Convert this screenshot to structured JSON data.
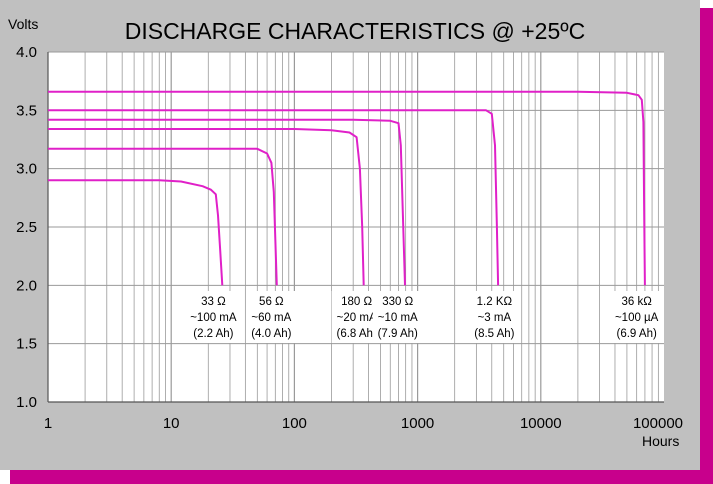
{
  "chart_data": {
    "type": "line",
    "title": "DISCHARGE CHARACTERISTICS @ +25ºC",
    "ylabel": "Volts",
    "xlabel": "Hours",
    "x_scale": "log",
    "xlim": [
      1,
      100000
    ],
    "ylim": [
      1.0,
      4.0
    ],
    "grid": true,
    "x_ticks": [
      {
        "value": 1,
        "label": "1"
      },
      {
        "value": 10,
        "label": "10"
      },
      {
        "value": 100,
        "label": "100"
      },
      {
        "value": 1000,
        "label": "1000"
      },
      {
        "value": 10000,
        "label": "10000"
      },
      {
        "value": 100000,
        "label": "100000"
      }
    ],
    "y_ticks": [
      {
        "value": 1.0,
        "label": "1.0"
      },
      {
        "value": 1.5,
        "label": "1.5"
      },
      {
        "value": 2.0,
        "label": "2.0"
      },
      {
        "value": 2.5,
        "label": "2.5"
      },
      {
        "value": 3.0,
        "label": "3.0"
      },
      {
        "value": 3.5,
        "label": "3.5"
      },
      {
        "value": 4.0,
        "label": "4.0"
      }
    ],
    "line_color": "#e020c8",
    "series": [
      {
        "annotation": [
          "33 Ω",
          "~100 mA",
          "(2.2 Ah)"
        ],
        "label_x": 22,
        "x": [
          1,
          8,
          12,
          18,
          21,
          23,
          24,
          25,
          26
        ],
        "y": [
          2.9,
          2.9,
          2.89,
          2.85,
          2.82,
          2.78,
          2.6,
          2.3,
          2.0
        ]
      },
      {
        "annotation": [
          "56 Ω",
          "~60 mA",
          "(4.0 Ah)"
        ],
        "label_x": 65,
        "x": [
          1,
          30,
          50,
          60,
          65,
          68,
          70,
          72
        ],
        "y": [
          3.17,
          3.17,
          3.17,
          3.13,
          3.05,
          2.8,
          2.4,
          2.0
        ]
      },
      {
        "annotation": [
          "180 Ω",
          "~20 mA",
          "(6.8 Ah)"
        ],
        "label_x": 320,
        "x": [
          1,
          100,
          200,
          280,
          320,
          340,
          355,
          365
        ],
        "y": [
          3.34,
          3.34,
          3.33,
          3.31,
          3.27,
          3.0,
          2.5,
          2.0
        ]
      },
      {
        "annotation": [
          "330 Ω",
          "~10 mA",
          "(7.9 Ah)"
        ],
        "label_x": 690,
        "x": [
          1,
          300,
          600,
          700,
          730,
          760,
          790
        ],
        "y": [
          3.42,
          3.42,
          3.41,
          3.39,
          3.2,
          2.6,
          2.0
        ]
      },
      {
        "annotation": [
          "1.2 KΩ",
          "~3 mA",
          "(8.5 Ah)"
        ],
        "label_x": 4200,
        "x": [
          1,
          2000,
          3600,
          4000,
          4250,
          4400,
          4500
        ],
        "y": [
          3.5,
          3.5,
          3.5,
          3.47,
          3.2,
          2.5,
          2.0
        ]
      },
      {
        "annotation": [
          "36 kΩ",
          "~100 µA",
          "(6.9 Ah)"
        ],
        "label_x": 60000,
        "x": [
          1,
          20000,
          50000,
          62000,
          66000,
          68000,
          69000,
          70000
        ],
        "y": [
          3.66,
          3.66,
          3.65,
          3.63,
          3.59,
          3.4,
          2.7,
          2.0
        ]
      }
    ]
  }
}
